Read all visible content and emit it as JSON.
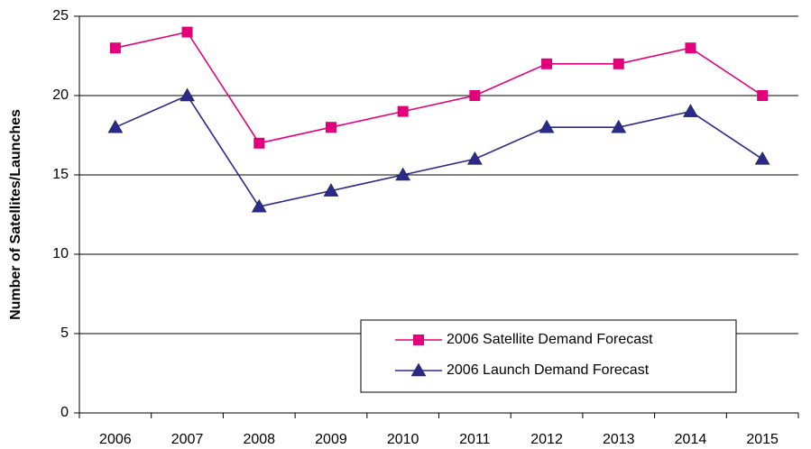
{
  "chart_data": {
    "type": "line",
    "y_label": "Number of Satellites/Launches",
    "categories": [
      "2006",
      "2007",
      "2008",
      "2009",
      "2010",
      "2011",
      "2012",
      "2013",
      "2014",
      "2015"
    ],
    "series": [
      {
        "name": "2006 Satellite Demand Forecast",
        "color": "#e2007a",
        "marker": "square",
        "values": [
          23,
          24,
          17,
          18,
          19,
          20,
          22,
          22,
          23,
          20
        ]
      },
      {
        "name": "2006 Launch Demand Forecast",
        "color": "#2a2a8a",
        "marker": "triangle",
        "values": [
          18,
          20,
          13,
          14,
          15,
          16,
          18,
          18,
          19,
          16
        ]
      }
    ],
    "ylim": [
      0,
      25
    ],
    "yticks": [
      0,
      5,
      10,
      15,
      20,
      25
    ],
    "grid": true,
    "legend": "lower right"
  }
}
